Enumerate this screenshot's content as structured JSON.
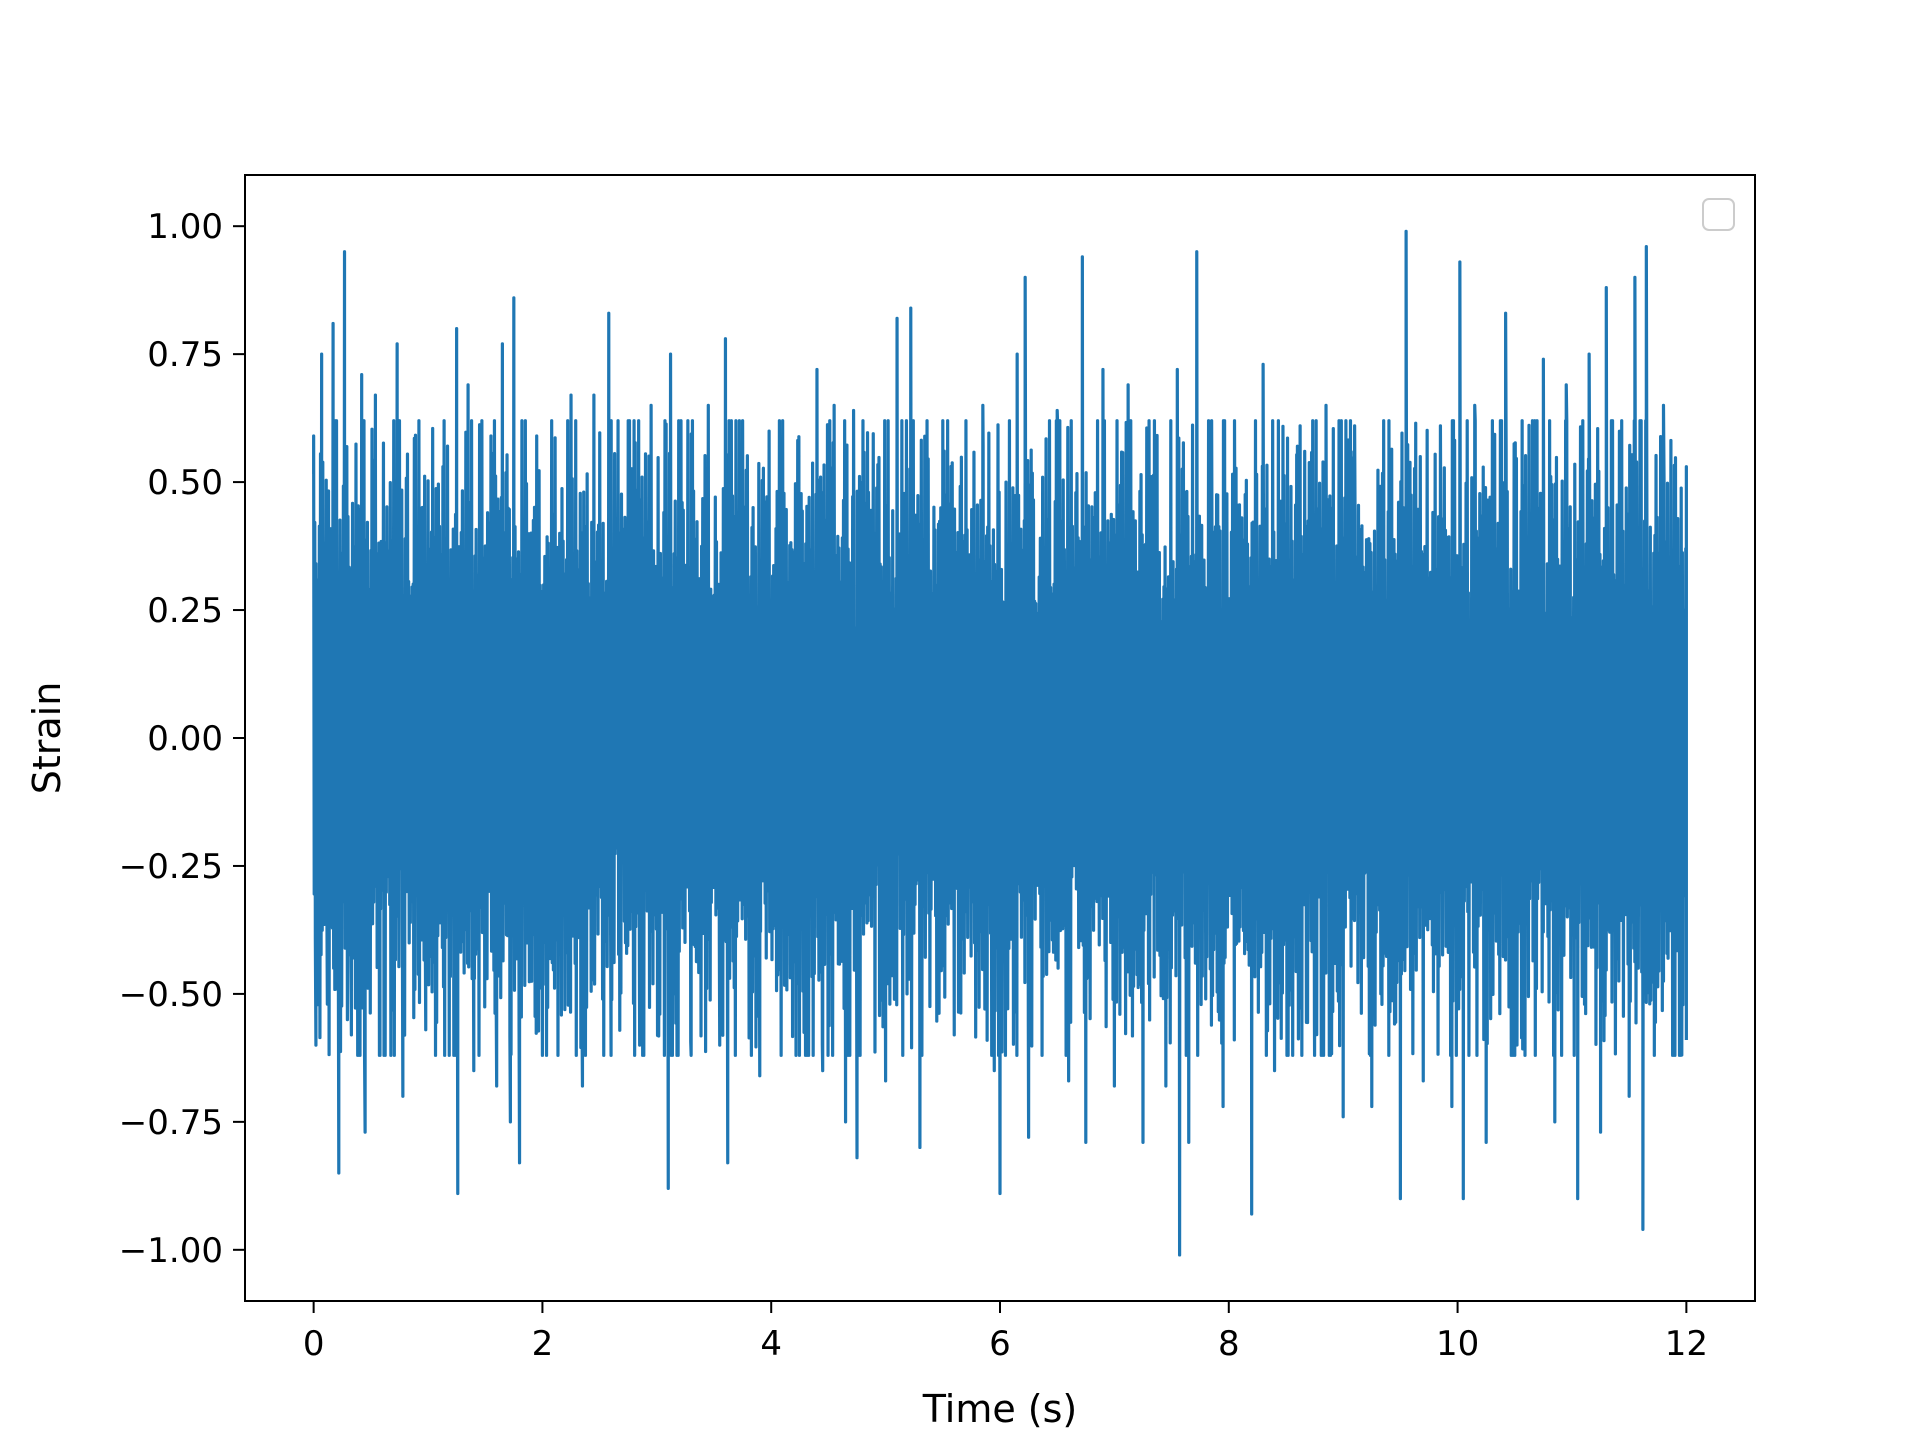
{
  "chart_data": {
    "type": "line",
    "title": "",
    "xlabel": "Time (s)",
    "ylabel": "Strain",
    "xlim": [
      -0.6,
      12.6
    ],
    "ylim": [
      -1.1,
      1.1
    ],
    "xticks": [
      0,
      2,
      4,
      6,
      8,
      10,
      12
    ],
    "xtick_labels": [
      "0",
      "2",
      "4",
      "6",
      "8",
      "10",
      "12"
    ],
    "yticks": [
      1.0,
      0.75,
      0.5,
      0.25,
      0.0,
      -0.25,
      -0.5,
      -0.75,
      -1.0
    ],
    "ytick_labels": [
      "1.00",
      "0.75",
      "0.50",
      "0.25",
      "0.00",
      "−0.25",
      "−0.50",
      "−0.75",
      "−1.00"
    ],
    "grid": false,
    "legend": {
      "placement": "upper-right",
      "entries": []
    },
    "series": [
      {
        "color": "#1f77b4",
        "x_start": 0.0,
        "x_end": 12.0,
        "peaks": [
          [
            0.0,
            0.59
          ],
          [
            0.02,
            -0.6
          ],
          [
            0.07,
            0.75
          ],
          [
            0.12,
            -0.52
          ],
          [
            0.17,
            0.81
          ],
          [
            0.22,
            -0.85
          ],
          [
            0.27,
            0.95
          ],
          [
            0.33,
            -0.58
          ],
          [
            0.42,
            0.71
          ],
          [
            0.45,
            -0.77
          ],
          [
            0.54,
            0.67
          ],
          [
            0.58,
            -0.62
          ],
          [
            0.73,
            0.77
          ],
          [
            0.78,
            -0.7
          ],
          [
            0.88,
            0.52
          ],
          [
            0.98,
            -0.57
          ],
          [
            1.13,
            0.53
          ],
          [
            1.25,
            0.8
          ],
          [
            1.26,
            -0.89
          ],
          [
            1.35,
            0.69
          ],
          [
            1.4,
            -0.65
          ],
          [
            1.55,
            0.59
          ],
          [
            1.6,
            -0.68
          ],
          [
            1.65,
            0.77
          ],
          [
            1.72,
            -0.75
          ],
          [
            1.75,
            0.86
          ],
          [
            1.8,
            -0.83
          ],
          [
            1.95,
            0.59
          ],
          [
            2.0,
            -0.62
          ],
          [
            2.25,
            0.67
          ],
          [
            2.35,
            -0.68
          ],
          [
            2.45,
            0.67
          ],
          [
            2.58,
            0.83
          ],
          [
            2.6,
            -0.62
          ],
          [
            2.75,
            0.62
          ],
          [
            2.85,
            -0.6
          ],
          [
            2.95,
            0.65
          ],
          [
            3.1,
            -0.88
          ],
          [
            3.12,
            0.75
          ],
          [
            3.3,
            -0.62
          ],
          [
            3.45,
            0.65
          ],
          [
            3.55,
            -0.6
          ],
          [
            3.6,
            0.78
          ],
          [
            3.62,
            -0.83
          ],
          [
            3.75,
            0.62
          ],
          [
            3.9,
            -0.66
          ],
          [
            4.1,
            0.62
          ],
          [
            4.3,
            -0.62
          ],
          [
            4.4,
            0.72
          ],
          [
            4.45,
            -0.65
          ],
          [
            4.55,
            0.65
          ],
          [
            4.65,
            -0.75
          ],
          [
            4.72,
            0.64
          ],
          [
            4.75,
            -0.82
          ],
          [
            4.85,
            0.48
          ],
          [
            5.0,
            -0.67
          ],
          [
            5.1,
            0.82
          ],
          [
            5.15,
            -0.62
          ],
          [
            5.22,
            0.84
          ],
          [
            5.3,
            -0.8
          ],
          [
            5.5,
            0.62
          ],
          [
            5.6,
            -0.58
          ],
          [
            5.85,
            0.65
          ],
          [
            5.95,
            -0.65
          ],
          [
            6.0,
            -0.89
          ],
          [
            6.15,
            0.75
          ],
          [
            6.22,
            0.9
          ],
          [
            6.25,
            -0.78
          ],
          [
            6.5,
            0.64
          ],
          [
            6.6,
            -0.67
          ],
          [
            6.72,
            0.94
          ],
          [
            6.75,
            -0.79
          ],
          [
            6.9,
            0.72
          ],
          [
            7.0,
            -0.68
          ],
          [
            7.12,
            0.69
          ],
          [
            7.25,
            -0.79
          ],
          [
            7.35,
            0.62
          ],
          [
            7.45,
            -0.68
          ],
          [
            7.55,
            0.72
          ],
          [
            7.57,
            -1.01
          ],
          [
            7.65,
            -0.79
          ],
          [
            7.72,
            0.95
          ],
          [
            7.85,
            0.62
          ],
          [
            7.95,
            -0.72
          ],
          [
            8.05,
            0.62
          ],
          [
            8.2,
            -0.93
          ],
          [
            8.3,
            0.73
          ],
          [
            8.4,
            -0.65
          ],
          [
            8.6,
            0.57
          ],
          [
            8.75,
            -0.62
          ],
          [
            8.85,
            0.65
          ],
          [
            9.0,
            -0.74
          ],
          [
            9.1,
            0.61
          ],
          [
            9.25,
            -0.72
          ],
          [
            9.4,
            0.62
          ],
          [
            9.5,
            -0.9
          ],
          [
            9.55,
            0.99
          ],
          [
            9.7,
            -0.67
          ],
          [
            9.85,
            0.61
          ],
          [
            9.95,
            -0.72
          ],
          [
            10.02,
            0.93
          ],
          [
            10.05,
            -0.9
          ],
          [
            10.15,
            0.65
          ],
          [
            10.25,
            -0.79
          ],
          [
            10.42,
            0.83
          ],
          [
            10.5,
            -0.62
          ],
          [
            10.75,
            0.74
          ],
          [
            10.85,
            -0.75
          ],
          [
            10.95,
            0.69
          ],
          [
            11.05,
            -0.9
          ],
          [
            11.15,
            0.75
          ],
          [
            11.25,
            -0.77
          ],
          [
            11.3,
            0.88
          ],
          [
            11.5,
            -0.7
          ],
          [
            11.55,
            0.9
          ],
          [
            11.62,
            -0.96
          ],
          [
            11.65,
            0.96
          ],
          [
            11.72,
            -0.62
          ],
          [
            11.8,
            0.65
          ],
          [
            11.9,
            -0.62
          ],
          [
            12.0,
            0.53
          ],
          [
            12.0,
            -0.59
          ]
        ]
      }
    ]
  }
}
